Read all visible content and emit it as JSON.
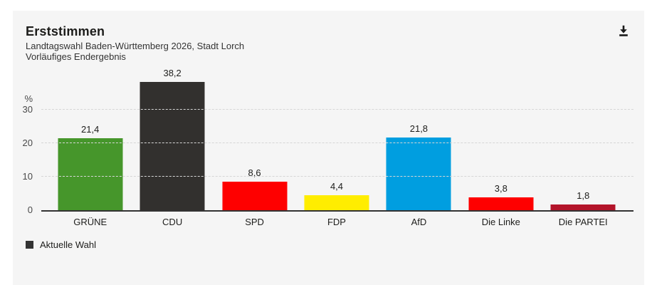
{
  "header": {
    "title": "Erststimmen",
    "subtitle_line1": "Landtagswahl Baden-Württemberg 2026, Stadt Lorch",
    "subtitle_line2": "Vorläufiges Endergebnis"
  },
  "toolbar": {
    "download_icon": "download-icon"
  },
  "chart_data": {
    "type": "bar",
    "title": "Erststimmen",
    "subtitle": "Landtagswahl Baden-Württemberg 2026, Stadt Lorch — Vorläufiges Endergebnis",
    "categories": [
      "GRÜNE",
      "CDU",
      "SPD",
      "FDP",
      "AfD",
      "Die Linke",
      "Die PARTEI"
    ],
    "values": [
      21.4,
      38.2,
      8.6,
      4.4,
      21.8,
      3.8,
      1.8
    ],
    "value_labels": [
      "21,4",
      "38,2",
      "8,6",
      "4,4",
      "21,8",
      "3,8",
      "1,8"
    ],
    "bar_colors": [
      "#46962b",
      "#32302e",
      "#fe0000",
      "#ffed00",
      "#009ee0",
      "#fe0000",
      "#b3142a"
    ],
    "ylabel": "%",
    "yticks": [
      0,
      10,
      20,
      30
    ],
    "ylim": [
      0,
      40
    ],
    "grid": "horizontal dashed gridlines, solid dark baseline",
    "legend_position": "bottom-left"
  },
  "legend": {
    "label": "Aktuelle Wahl",
    "color": "#333333"
  },
  "colors": {
    "card_background": "#f5f5f5",
    "page_background": "#ffffff",
    "text": "#1d1d1b",
    "axis": "#333333"
  }
}
